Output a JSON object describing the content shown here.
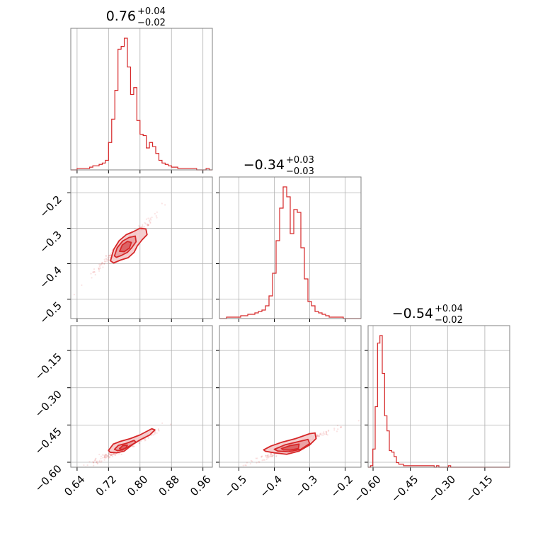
{
  "chart_data": {
    "type": "corner",
    "color": "#d62728",
    "grid": true,
    "parameters": [
      {
        "median": "0.76",
        "plus": "+0.04",
        "minus": "−0.02",
        "xlim": [
          0.624,
          0.984
        ],
        "ticks": [
          0.64,
          0.72,
          0.8,
          0.88,
          0.96
        ],
        "tick_labels": [
          "0.64",
          "0.72",
          "0.80",
          "0.88",
          "0.96"
        ]
      },
      {
        "median": "−0.34",
        "plus": "+0.03",
        "minus": "−0.03",
        "xlim": [
          -0.555,
          -0.155
        ],
        "ticks": [
          -0.5,
          -0.4,
          -0.3,
          -0.2
        ],
        "tick_labels": [
          "−0.5",
          "−0.4",
          "−0.3",
          "−0.2"
        ]
      },
      {
        "median": "−0.54",
        "plus": "+0.04",
        "minus": "−0.02",
        "xlim": [
          -0.62,
          -0.05
        ],
        "ticks": [
          -0.6,
          -0.45,
          -0.3,
          -0.15
        ],
        "tick_labels": [
          "−0.60",
          "−0.45",
          "−0.30",
          "−0.15"
        ]
      }
    ],
    "y_axes": [
      {
        "row": 1,
        "ylim": [
          -0.555,
          -0.155
        ],
        "ticks": [
          -0.5,
          -0.4,
          -0.3,
          -0.2
        ],
        "tick_labels": [
          "−0.5",
          "−0.4",
          "−0.3",
          "−0.2"
        ]
      },
      {
        "row": 2,
        "ylim": [
          -0.62,
          -0.05
        ],
        "ticks": [
          -0.6,
          -0.45,
          -0.3,
          -0.15
        ],
        "tick_labels": [
          "−0.60",
          "−0.45",
          "−0.30",
          "−0.15"
        ]
      }
    ],
    "histograms": [
      {
        "param": 0,
        "bin_edges": [
          0.624,
          0.632,
          0.64,
          0.648,
          0.656,
          0.664,
          0.672,
          0.68,
          0.688,
          0.696,
          0.704,
          0.712,
          0.72,
          0.728,
          0.736,
          0.744,
          0.752,
          0.76,
          0.768,
          0.776,
          0.784,
          0.792,
          0.8,
          0.808,
          0.816,
          0.824,
          0.832,
          0.84,
          0.848,
          0.856,
          0.864,
          0.872,
          0.88,
          0.888,
          0.896,
          0.904,
          0.912,
          0.92,
          0.928,
          0.936,
          0.944,
          0.952,
          0.96,
          0.968,
          0.976,
          0.984
        ],
        "counts": [
          0,
          0,
          0.01,
          0.01,
          0.01,
          0.01,
          0.02,
          0.03,
          0.03,
          0.04,
          0.05,
          0.07,
          0.2,
          0.37,
          0.58,
          0.88,
          0.9,
          0.96,
          0.75,
          0.55,
          0.6,
          0.36,
          0.26,
          0.25,
          0.16,
          0.2,
          0.17,
          0.12,
          0.07,
          0.05,
          0.04,
          0.03,
          0.02,
          0.02,
          0.01,
          0.01,
          0.01,
          0.01,
          0.01,
          0.01,
          0,
          0,
          0,
          0.01,
          0
        ]
      },
      {
        "param": 1,
        "bin_edges": [
          -0.555,
          -0.545,
          -0.535,
          -0.525,
          -0.515,
          -0.505,
          -0.495,
          -0.485,
          -0.475,
          -0.465,
          -0.455,
          -0.445,
          -0.435,
          -0.425,
          -0.415,
          -0.405,
          -0.395,
          -0.385,
          -0.375,
          -0.365,
          -0.355,
          -0.345,
          -0.335,
          -0.325,
          -0.315,
          -0.305,
          -0.295,
          -0.285,
          -0.275,
          -0.265,
          -0.255,
          -0.245,
          -0.235,
          -0.225,
          -0.215,
          -0.205,
          -0.195,
          -0.185,
          -0.175,
          -0.165,
          -0.155
        ],
        "counts": [
          0,
          0,
          0.01,
          0.01,
          0.01,
          0.01,
          0.02,
          0.02,
          0.03,
          0.03,
          0.04,
          0.05,
          0.06,
          0.09,
          0.16,
          0.32,
          0.55,
          0.78,
          0.93,
          0.86,
          0.6,
          0.77,
          0.75,
          0.5,
          0.28,
          0.12,
          0.09,
          0.05,
          0.04,
          0.03,
          0.02,
          0.01,
          0.01,
          0.01,
          0.01,
          0,
          0,
          0,
          0,
          0
        ]
      },
      {
        "param": 2,
        "bin_edges": [
          -0.62,
          -0.6105,
          -0.601,
          -0.5915,
          -0.582,
          -0.5725,
          -0.563,
          -0.5535,
          -0.544,
          -0.5345,
          -0.525,
          -0.5155,
          -0.506,
          -0.4965,
          -0.487,
          -0.4775,
          -0.468,
          -0.4585,
          -0.449,
          -0.4395,
          -0.43,
          -0.4205,
          -0.411,
          -0.4015,
          -0.392,
          -0.3825,
          -0.373,
          -0.3635,
          -0.354,
          -0.3445,
          -0.335,
          -0.3255,
          -0.316,
          -0.3065,
          -0.297,
          -0.2875,
          -0.278,
          -0.2685,
          -0.259,
          -0.2495,
          -0.24,
          -0.2305,
          -0.221,
          -0.2115,
          -0.202,
          -0.1925,
          -0.183,
          -0.1735,
          -0.164,
          -0.1545,
          -0.145,
          -0.1355,
          -0.126,
          -0.1165,
          -0.107,
          -0.0975,
          -0.088,
          -0.0785,
          -0.069,
          -0.0595,
          -0.05
        ],
        "counts": [
          0,
          0.01,
          0.12,
          0.4,
          0.82,
          0.87,
          0.62,
          0.34,
          0.24,
          0.11,
          0.1,
          0.07,
          0.03,
          0.02,
          0.02,
          0.01,
          0.01,
          0.01,
          0.01,
          0.01,
          0.01,
          0.01,
          0.01,
          0.01,
          0.01,
          0.01,
          0.01,
          0.01,
          0,
          0.01,
          0,
          0,
          0,
          0,
          0.01,
          0,
          0,
          0,
          0,
          0,
          0,
          0,
          0,
          0,
          0,
          0,
          0,
          0,
          0,
          0,
          0,
          0,
          0,
          0,
          0,
          0,
          0,
          0,
          0,
          0,
          0
        ]
      }
    ],
    "pairs": [
      {
        "x_param": 0,
        "y_param": 1,
        "center": [
          0.76,
          -0.345
        ],
        "levels": [
          [
            [
              0.725,
              -0.392
            ],
            [
              0.733,
              -0.36
            ],
            [
              0.747,
              -0.335
            ],
            [
              0.765,
              -0.318
            ],
            [
              0.782,
              -0.31
            ],
            [
              0.8,
              -0.3
            ],
            [
              0.815,
              -0.302
            ],
            [
              0.818,
              -0.318
            ],
            [
              0.805,
              -0.333
            ],
            [
              0.793,
              -0.35
            ],
            [
              0.785,
              -0.368
            ],
            [
              0.77,
              -0.383
            ],
            [
              0.75,
              -0.39
            ],
            [
              0.733,
              -0.398
            ]
          ],
          [
            [
              0.735,
              -0.378
            ],
            [
              0.742,
              -0.355
            ],
            [
              0.756,
              -0.336
            ],
            [
              0.772,
              -0.326
            ],
            [
              0.788,
              -0.322
            ],
            [
              0.79,
              -0.338
            ],
            [
              0.779,
              -0.355
            ],
            [
              0.768,
              -0.368
            ],
            [
              0.752,
              -0.377
            ],
            [
              0.74,
              -0.382
            ]
          ],
          [
            [
              0.748,
              -0.365
            ],
            [
              0.755,
              -0.347
            ],
            [
              0.768,
              -0.337
            ],
            [
              0.778,
              -0.34
            ],
            [
              0.773,
              -0.356
            ],
            [
              0.76,
              -0.366
            ]
          ]
        ]
      },
      {
        "x_param": 0,
        "y_param": 2,
        "center": [
          0.76,
          -0.54
        ],
        "levels": [
          [
            [
              0.72,
              -0.552
            ],
            [
              0.732,
              -0.527
            ],
            [
              0.75,
              -0.516
            ],
            [
              0.775,
              -0.505
            ],
            [
              0.8,
              -0.49
            ],
            [
              0.83,
              -0.465
            ],
            [
              0.838,
              -0.47
            ],
            [
              0.825,
              -0.49
            ],
            [
              0.8,
              -0.51
            ],
            [
              0.78,
              -0.53
            ],
            [
              0.76,
              -0.555
            ],
            [
              0.74,
              -0.562
            ],
            [
              0.724,
              -0.56
            ]
          ],
          [
            [
              0.735,
              -0.548
            ],
            [
              0.745,
              -0.532
            ],
            [
              0.765,
              -0.524
            ],
            [
              0.785,
              -0.512
            ],
            [
              0.79,
              -0.52
            ],
            [
              0.772,
              -0.536
            ],
            [
              0.755,
              -0.551
            ],
            [
              0.742,
              -0.553
            ]
          ],
          [
            [
              0.748,
              -0.545
            ],
            [
              0.756,
              -0.533
            ],
            [
              0.768,
              -0.531
            ],
            [
              0.764,
              -0.543
            ],
            [
              0.754,
              -0.549
            ]
          ]
        ]
      },
      {
        "x_param": 1,
        "y_param": 2,
        "center": [
          -0.355,
          -0.54
        ],
        "levels": [
          [
            [
              -0.43,
              -0.55
            ],
            [
              -0.41,
              -0.535
            ],
            [
              -0.38,
              -0.52
            ],
            [
              -0.34,
              -0.505
            ],
            [
              -0.3,
              -0.485
            ],
            [
              -0.285,
              -0.482
            ],
            [
              -0.282,
              -0.505
            ],
            [
              -0.3,
              -0.53
            ],
            [
              -0.33,
              -0.555
            ],
            [
              -0.365,
              -0.568
            ],
            [
              -0.4,
              -0.562
            ],
            [
              -0.425,
              -0.556
            ]
          ],
          [
            [
              -0.4,
              -0.548
            ],
            [
              -0.37,
              -0.53
            ],
            [
              -0.335,
              -0.518
            ],
            [
              -0.305,
              -0.508
            ],
            [
              -0.3,
              -0.525
            ],
            [
              -0.325,
              -0.548
            ],
            [
              -0.36,
              -0.558
            ],
            [
              -0.39,
              -0.555
            ]
          ],
          [
            [
              -0.38,
              -0.545
            ],
            [
              -0.355,
              -0.533
            ],
            [
              -0.33,
              -0.527
            ],
            [
              -0.332,
              -0.545
            ],
            [
              -0.355,
              -0.551
            ],
            [
              -0.375,
              -0.55
            ]
          ]
        ]
      }
    ]
  }
}
